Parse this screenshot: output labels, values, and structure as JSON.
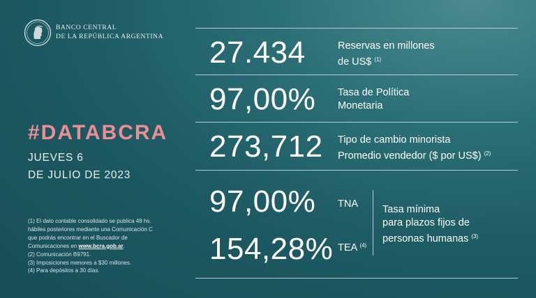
{
  "header": {
    "line1": "BANCO CENTRAL",
    "line2": "DE LA REPÚBLICA ARGENTINA"
  },
  "hashtag": "#DATABCRA",
  "date": {
    "line1": "JUEVES 6",
    "line2": "DE JULIO DE 2023"
  },
  "indicators": {
    "reservas": {
      "value": "27.434",
      "label1": "Reservas en millones",
      "label2": "de US$",
      "note": "(1)"
    },
    "tasa_politica": {
      "value": "97,00%",
      "label1": "Tasa de Política",
      "label2": "Monetaria"
    },
    "tipo_cambio": {
      "value": "273,712",
      "label1": "Tipo de cambio minorista",
      "label2": "Promedio vendedor ($ por US$)",
      "note": "(2)"
    },
    "tna": {
      "value": "97,00%",
      "label": "TNA"
    },
    "tea": {
      "value": "154,28%",
      "label": "TEA",
      "note": "(4)"
    },
    "tasa_minima": {
      "line1": "Tasa mínima",
      "line2": "para plazos fijos de",
      "line3": "personas humanas",
      "note": "(3)"
    }
  },
  "footnotes": {
    "n1a": "(1) El dato contable consolidado se publica 48 hs.",
    "n1b": "hábiles posteriores mediante una Comunicación C",
    "n1c": "que podrás encontrar en el Buscador de",
    "n1d": "Comunicaciones en ",
    "n1_link": "www.bcra.gob.ar",
    "n1e": ".",
    "n2": "(2) Comunicación B9791.",
    "n3": "(3) Imposiciones menores a $30 millones.",
    "n4": "(4) Para depósitos a 30 días."
  },
  "colors": {
    "background": "#1d5a63",
    "accent": "#ec8f94",
    "rule": "#b5ccd0"
  },
  "icons": {
    "logo": "bcra-seal-icon"
  }
}
